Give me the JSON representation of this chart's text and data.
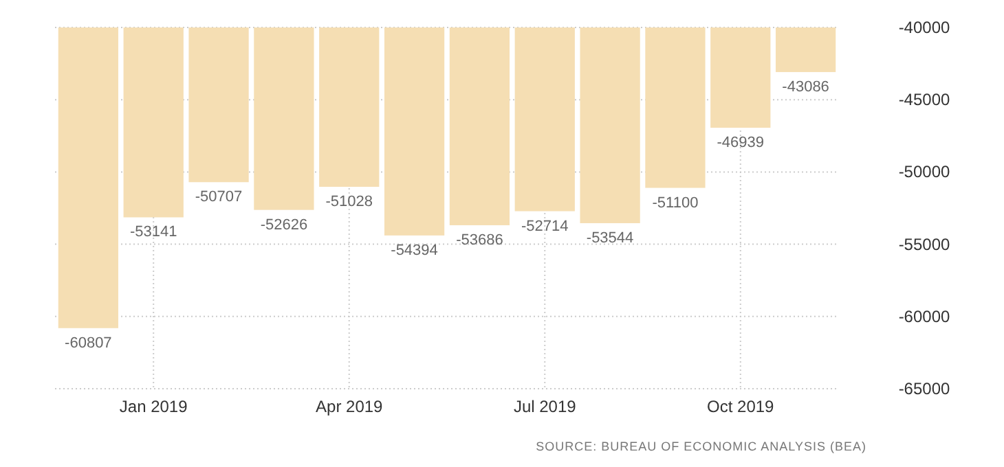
{
  "chart_data": {
    "type": "bar",
    "categories": [
      null,
      "Jan 2019",
      null,
      null,
      "Apr 2019",
      null,
      null,
      "Jul 2019",
      null,
      null,
      "Oct 2019",
      null
    ],
    "values": [
      -60807,
      -53141,
      -50707,
      -52626,
      -51028,
      -54394,
      -53686,
      -52714,
      -53544,
      -51100,
      -46939,
      -43086
    ],
    "color": "#f5deb3",
    "ylim": [
      -65000,
      -40000
    ],
    "yticks": [
      -65000,
      -60000,
      -55000,
      -50000,
      -45000,
      -40000
    ],
    "grid": true,
    "data_labels": true,
    "annotations": [
      "SOURCE: BUREAU OF ECONOMIC ANALYSIS (BEA)"
    ]
  }
}
